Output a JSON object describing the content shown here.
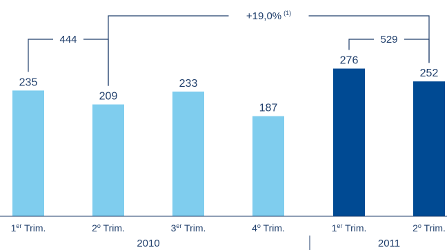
{
  "chart_data": {
    "type": "bar",
    "categories": [
      {
        "base": "1",
        "sup": "er",
        "rest": " Trim.",
        "group": 0
      },
      {
        "base": "2",
        "sup": "o",
        "rest": " Trim.",
        "group": 0
      },
      {
        "base": "3",
        "sup": "er",
        "rest": " Trim.",
        "group": 0
      },
      {
        "base": "4",
        "sup": "o",
        "rest": " Trim.",
        "group": 0
      },
      {
        "base": "1",
        "sup": "er",
        "rest": " Trim.",
        "group": 1
      },
      {
        "base": "2",
        "sup": "o",
        "rest": " Trim.",
        "group": 1
      }
    ],
    "values": [
      235,
      209,
      233,
      187,
      276,
      252
    ],
    "value_labels": [
      "235",
      "209",
      "233",
      "187",
      "276",
      "252"
    ],
    "groups": [
      "2010",
      "2011"
    ],
    "colors": {
      "2010": "#7fcdee",
      "2011": "#004a93"
    },
    "ylim": [
      0,
      300
    ],
    "brackets": [
      {
        "label": "444",
        "from": 0,
        "to": 1
      },
      {
        "label": "529",
        "from": 4,
        "to": 5
      },
      {
        "label": "+19,0%",
        "sup": "(1)",
        "from": 1,
        "to": 5
      }
    ],
    "title": "",
    "xlabel": "",
    "ylabel": ""
  }
}
